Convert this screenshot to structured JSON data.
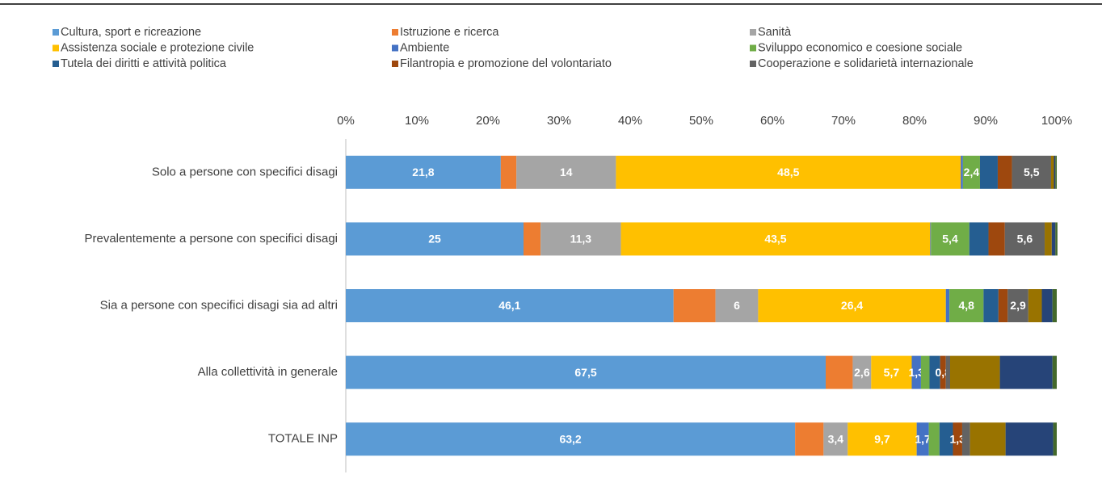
{
  "chart_data": {
    "type": "stacked_barh",
    "categories": [
      "Solo a persone con specifici disagi",
      "Prevalentemente a persone con specifici disagi",
      "Sia a persone con specifici disagi sia ad altri",
      "Alla collettività in generale",
      "TOTALE INP"
    ],
    "xlim": [
      0,
      100
    ],
    "xticks": [
      {
        "value": 0,
        "label": "0%"
      },
      {
        "value": 10,
        "label": "10%"
      },
      {
        "value": 20,
        "label": "20%"
      },
      {
        "value": 30,
        "label": "30%"
      },
      {
        "value": 40,
        "label": "40%"
      },
      {
        "value": 50,
        "label": "50%"
      },
      {
        "value": 60,
        "label": "60%"
      },
      {
        "value": 70,
        "label": "70%"
      },
      {
        "value": 80,
        "label": "80%"
      },
      {
        "value": 90,
        "label": "90%"
      },
      {
        "value": 100,
        "label": "100%"
      }
    ],
    "legend": "top",
    "series": [
      {
        "name": "Cultura, sport e ricreazione",
        "color": "#5b9bd5",
        "values": [
          21.8,
          25,
          46.1,
          67.5,
          63.2
        ],
        "value_labels": [
          "21,8",
          "25",
          "46,1",
          "67,5",
          "63,2"
        ]
      },
      {
        "name": "Istruzione e ricerca",
        "color": "#ed7d31",
        "values": [
          2.2,
          2.4,
          5.9,
          3.8,
          4.0
        ]
      },
      {
        "name": "Sanità",
        "color": "#a5a5a5",
        "values": [
          14,
          11.3,
          6,
          2.6,
          3.4
        ],
        "value_labels": [
          "14",
          "11,3",
          "6",
          "2,6",
          "3,4"
        ]
      },
      {
        "name": "Assistenza sociale e protezione civile",
        "color": "#ffc000",
        "values": [
          48.5,
          43.5,
          26.4,
          5.7,
          9.7
        ],
        "value_labels": [
          "48,5",
          "43,5",
          "26,4",
          "5,7",
          "9,7"
        ]
      },
      {
        "name": "Ambiente",
        "color": "#4472c4",
        "values": [
          0.3,
          0.1,
          0.5,
          1.3,
          1.7
        ],
        "value_labels": [
          null,
          null,
          null,
          "1,3",
          "1,7"
        ]
      },
      {
        "name": "Sviluppo economico e coesione sociale",
        "color": "#70ad47",
        "values": [
          2.4,
          5.4,
          4.8,
          1.2,
          1.5
        ],
        "value_labels": [
          "2,4",
          "5,4",
          "4,8",
          null,
          null
        ]
      },
      {
        "name": "Tutela dei diritti e attività politica",
        "color": "#255e91",
        "values": [
          2.5,
          2.7,
          2.1,
          1.5,
          1.9
        ]
      },
      {
        "name": "Filantropia e promozione del volontariato",
        "color": "#9e480e",
        "values": [
          2.0,
          2.3,
          1.3,
          0.8,
          1.3
        ],
        "value_labels": [
          null,
          null,
          null,
          "0,8",
          "1,3"
        ]
      },
      {
        "name": "Cooperazione e solidarietà internazionale",
        "color": "#636363",
        "values": [
          5.5,
          5.6,
          2.9,
          0.6,
          1.1
        ],
        "value_labels": [
          "5,5",
          "5,6",
          "2,9",
          null,
          null
        ]
      },
      {
        "color": "#997300",
        "values": [
          0.4,
          1.0,
          1.9,
          7.0,
          5.0
        ]
      },
      {
        "color": "#264478",
        "values": [
          0.2,
          0.5,
          1.5,
          7.4,
          6.7
        ]
      },
      {
        "color": "#43682b",
        "values": [
          0.2,
          0.3,
          0.6,
          0.6,
          0.5
        ]
      }
    ]
  }
}
